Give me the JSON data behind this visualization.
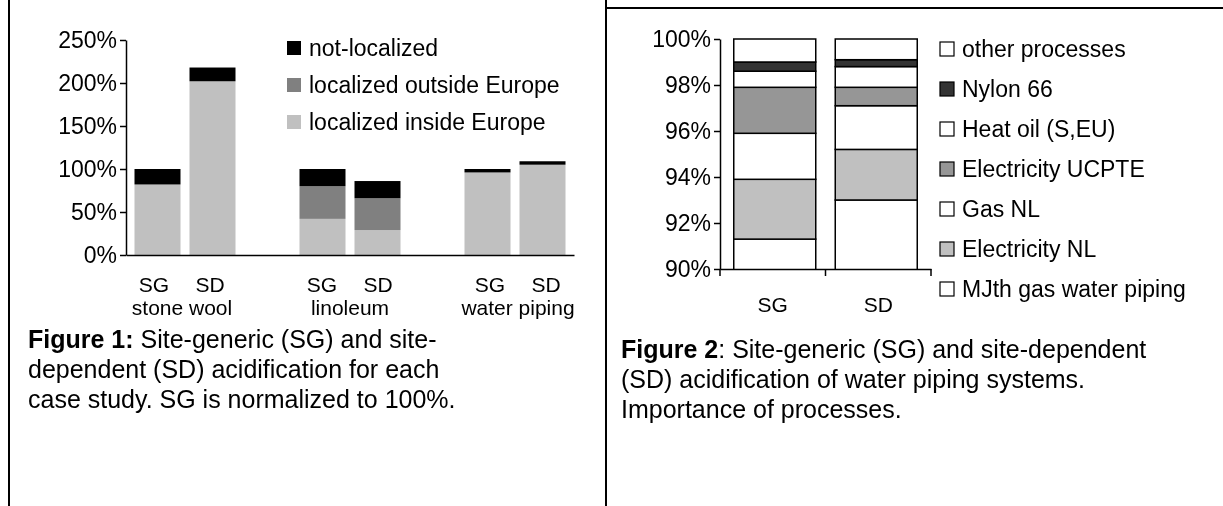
{
  "chart_data": [
    {
      "type": "bar",
      "stacked": true,
      "categories": [
        "SG",
        "SD",
        null,
        "SG",
        "SD",
        null,
        "SG",
        "SD"
      ],
      "series": [
        {
          "name": "localized inside Europe",
          "color": "#c0c0c0",
          "values": [
            82,
            202,
            null,
            42,
            29,
            null,
            96,
            105
          ]
        },
        {
          "name": "localized outside Europe",
          "color": "#808080",
          "values": [
            0,
            0,
            null,
            38,
            37,
            null,
            0,
            0
          ]
        },
        {
          "name": "not-localized",
          "color": "#000000",
          "values": [
            18,
            16,
            null,
            20,
            20,
            null,
            4,
            4
          ]
        }
      ],
      "ylim": [
        0,
        250
      ],
      "yticks": [
        {
          "value": 0,
          "label": "0%"
        },
        {
          "value": 50,
          "label": "50%"
        },
        {
          "value": 100,
          "label": "100%"
        },
        {
          "value": 150,
          "label": "150%"
        },
        {
          "value": 200,
          "label": "200%"
        },
        {
          "value": 250,
          "label": "250%"
        }
      ],
      "legend": "top right",
      "annotations": [
        "stone wool",
        "linoleum",
        "water piping",
        "Figure 1:",
        "Site-generic (SG) and site-dependent (SD) acidification for each case study. SG is normalized to 100%."
      ]
    },
    {
      "type": "bar",
      "stacked": true,
      "categories": [
        "SG",
        "SD"
      ],
      "series": [
        {
          "name": "MJth gas water piping",
          "color": "#ffffff",
          "values": [
            91.3,
            93.0
          ]
        },
        {
          "name": "Electricity NL",
          "color": "#c0c0c0",
          "values": [
            2.6,
            2.2
          ],
          "base": [
            91.3,
            93.0
          ]
        },
        {
          "name": "Gas NL",
          "color": "#ffffff",
          "values": [
            2.0,
            1.9
          ],
          "base": [
            93.9,
            95.2
          ]
        },
        {
          "name": "Electricity UCPTE",
          "color": "#969696",
          "values": [
            2.0,
            0.8
          ],
          "base": [
            95.9,
            97.1
          ]
        },
        {
          "name": "Heat oil (S,EU)",
          "color": "#ffffff",
          "values": [
            0.7,
            0.9
          ],
          "base": [
            97.9,
            97.9
          ]
        },
        {
          "name": "Nylon 66",
          "color": "#333333",
          "values": [
            0.4,
            0.3
          ],
          "base": [
            98.6,
            98.8
          ]
        },
        {
          "name": "other processes",
          "color": "#ffffff",
          "values": [
            1.0,
            0.9
          ],
          "base": [
            99.0,
            99.1
          ]
        }
      ],
      "ylim": [
        90,
        100
      ],
      "yticks": [
        {
          "value": 90,
          "label": "90%"
        },
        {
          "value": 92,
          "label": "92%"
        },
        {
          "value": 94,
          "label": "94%"
        },
        {
          "value": 96,
          "label": "96%"
        },
        {
          "value": 98,
          "label": "98%"
        },
        {
          "value": 100,
          "label": "100%"
        }
      ],
      "legend": "right",
      "annotations": [
        "Figure 2",
        ": Site-generic (SG) and site-dependent (SD) acidification of water piping systems. Importance of processes."
      ]
    }
  ]
}
